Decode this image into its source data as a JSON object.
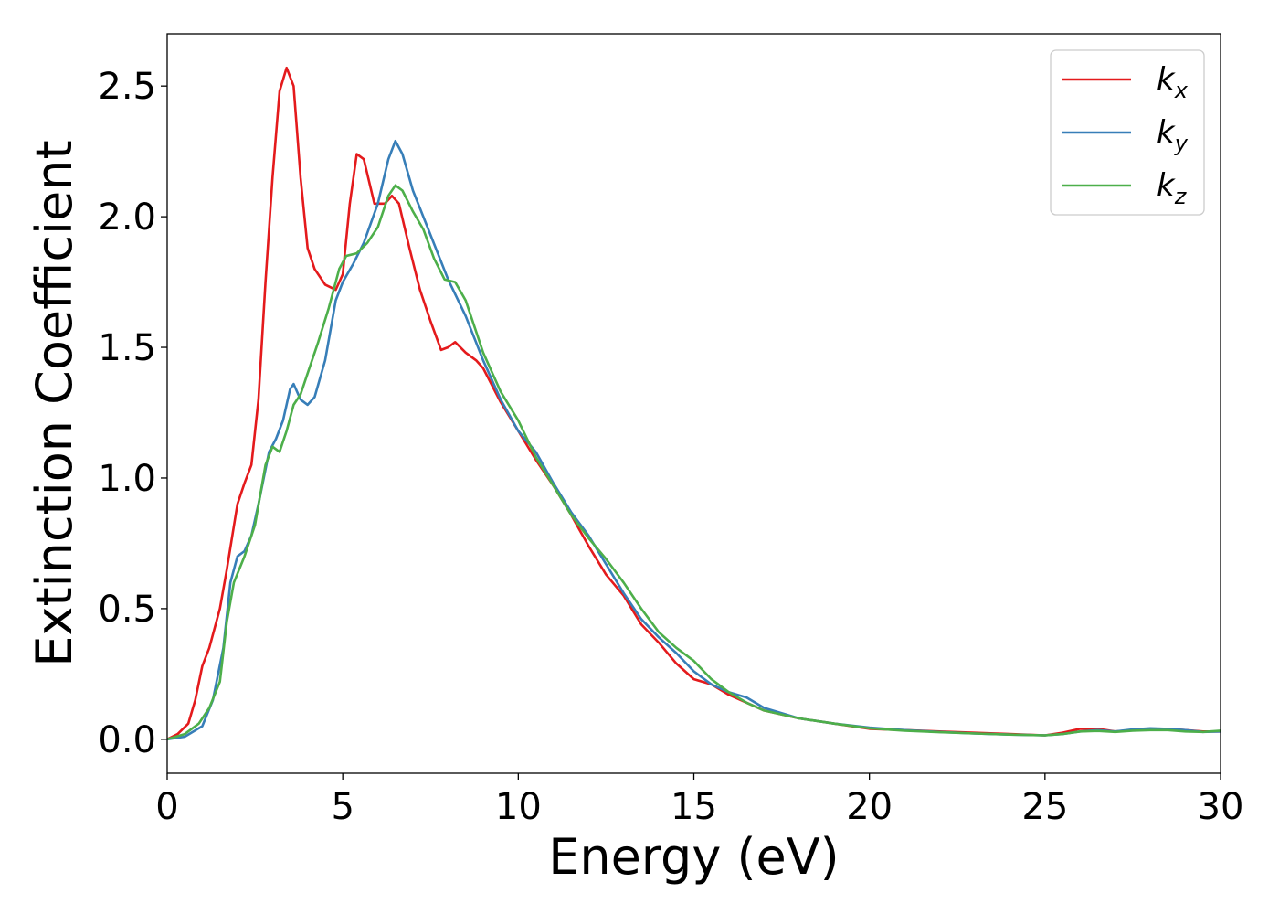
{
  "chart_data": {
    "type": "line",
    "xlabel": "Energy (eV)",
    "ylabel": "Extinction Coefficient",
    "xlim": [
      0,
      30
    ],
    "ylim": [
      -0.13,
      2.7
    ],
    "xticks": [
      0,
      5,
      10,
      15,
      20,
      25,
      30
    ],
    "xtick_labels": [
      "0",
      "5",
      "10",
      "15",
      "20",
      "25",
      "30"
    ],
    "yticks": [
      0.0,
      0.5,
      1.0,
      1.5,
      2.0,
      2.5
    ],
    "ytick_labels": [
      "0.0",
      "0.5",
      "1.0",
      "1.5",
      "2.0",
      "2.5"
    ],
    "grid": false,
    "legend_position": "top-right",
    "series": [
      {
        "name": "k_x",
        "label_main": "k",
        "label_sub": "x",
        "color": "#e41a1c",
        "points": [
          [
            0,
            0.0
          ],
          [
            0.3,
            0.02
          ],
          [
            0.6,
            0.06
          ],
          [
            0.8,
            0.15
          ],
          [
            1.0,
            0.28
          ],
          [
            1.2,
            0.35
          ],
          [
            1.5,
            0.5
          ],
          [
            1.7,
            0.65
          ],
          [
            2.0,
            0.9
          ],
          [
            2.2,
            0.98
          ],
          [
            2.4,
            1.05
          ],
          [
            2.6,
            1.3
          ],
          [
            2.8,
            1.75
          ],
          [
            3.0,
            2.15
          ],
          [
            3.2,
            2.48
          ],
          [
            3.4,
            2.57
          ],
          [
            3.6,
            2.5
          ],
          [
            3.8,
            2.15
          ],
          [
            4.0,
            1.88
          ],
          [
            4.2,
            1.8
          ],
          [
            4.5,
            1.74
          ],
          [
            4.8,
            1.72
          ],
          [
            5.0,
            1.78
          ],
          [
            5.2,
            2.05
          ],
          [
            5.4,
            2.24
          ],
          [
            5.6,
            2.22
          ],
          [
            5.9,
            2.05
          ],
          [
            6.2,
            2.05
          ],
          [
            6.4,
            2.08
          ],
          [
            6.6,
            2.05
          ],
          [
            6.9,
            1.88
          ],
          [
            7.2,
            1.72
          ],
          [
            7.5,
            1.6
          ],
          [
            7.8,
            1.49
          ],
          [
            8.0,
            1.5
          ],
          [
            8.2,
            1.52
          ],
          [
            8.5,
            1.48
          ],
          [
            8.8,
            1.45
          ],
          [
            9.0,
            1.42
          ],
          [
            9.5,
            1.29
          ],
          [
            10.0,
            1.18
          ],
          [
            10.5,
            1.07
          ],
          [
            11.0,
            0.97
          ],
          [
            11.5,
            0.86
          ],
          [
            12.0,
            0.74
          ],
          [
            12.5,
            0.63
          ],
          [
            13.0,
            0.55
          ],
          [
            13.5,
            0.44
          ],
          [
            14.0,
            0.37
          ],
          [
            14.5,
            0.29
          ],
          [
            15.0,
            0.23
          ],
          [
            15.5,
            0.21
          ],
          [
            16.0,
            0.17
          ],
          [
            16.5,
            0.14
          ],
          [
            17.0,
            0.11
          ],
          [
            18.0,
            0.08
          ],
          [
            19.0,
            0.06
          ],
          [
            20.0,
            0.04
          ],
          [
            21.0,
            0.035
          ],
          [
            22.0,
            0.03
          ],
          [
            23.0,
            0.025
          ],
          [
            24.0,
            0.02
          ],
          [
            25.0,
            0.015
          ],
          [
            25.5,
            0.025
          ],
          [
            26.0,
            0.04
          ],
          [
            26.5,
            0.04
          ],
          [
            27.0,
            0.03
          ],
          [
            27.5,
            0.035
          ],
          [
            28.0,
            0.04
          ],
          [
            28.5,
            0.04
          ],
          [
            29.0,
            0.035
          ],
          [
            29.5,
            0.03
          ],
          [
            30.0,
            0.03
          ]
        ]
      },
      {
        "name": "k_y",
        "label_main": "k",
        "label_sub": "y",
        "color": "#377eb8",
        "points": [
          [
            0,
            0.0
          ],
          [
            0.5,
            0.01
          ],
          [
            1.0,
            0.05
          ],
          [
            1.3,
            0.15
          ],
          [
            1.6,
            0.35
          ],
          [
            1.8,
            0.6
          ],
          [
            2.0,
            0.7
          ],
          [
            2.2,
            0.72
          ],
          [
            2.4,
            0.78
          ],
          [
            2.6,
            0.9
          ],
          [
            2.9,
            1.1
          ],
          [
            3.1,
            1.15
          ],
          [
            3.3,
            1.22
          ],
          [
            3.5,
            1.34
          ],
          [
            3.6,
            1.36
          ],
          [
            3.8,
            1.3
          ],
          [
            4.0,
            1.28
          ],
          [
            4.2,
            1.31
          ],
          [
            4.5,
            1.45
          ],
          [
            4.8,
            1.68
          ],
          [
            5.0,
            1.75
          ],
          [
            5.3,
            1.82
          ],
          [
            5.6,
            1.9
          ],
          [
            6.0,
            2.05
          ],
          [
            6.3,
            2.22
          ],
          [
            6.5,
            2.29
          ],
          [
            6.7,
            2.24
          ],
          [
            7.0,
            2.1
          ],
          [
            7.5,
            1.93
          ],
          [
            8.0,
            1.76
          ],
          [
            8.5,
            1.62
          ],
          [
            9.0,
            1.45
          ],
          [
            9.5,
            1.3
          ],
          [
            10.0,
            1.18
          ],
          [
            10.5,
            1.1
          ],
          [
            11.0,
            0.98
          ],
          [
            11.5,
            0.87
          ],
          [
            12.0,
            0.78
          ],
          [
            12.5,
            0.67
          ],
          [
            13.0,
            0.56
          ],
          [
            13.5,
            0.46
          ],
          [
            14.0,
            0.39
          ],
          [
            14.5,
            0.33
          ],
          [
            15.0,
            0.26
          ],
          [
            15.5,
            0.21
          ],
          [
            16.0,
            0.18
          ],
          [
            16.5,
            0.16
          ],
          [
            17.0,
            0.12
          ],
          [
            18.0,
            0.08
          ],
          [
            19.0,
            0.06
          ],
          [
            20.0,
            0.045
          ],
          [
            21.0,
            0.035
          ],
          [
            22.0,
            0.028
          ],
          [
            23.0,
            0.022
          ],
          [
            24.0,
            0.018
          ],
          [
            25.0,
            0.015
          ],
          [
            25.5,
            0.02
          ],
          [
            26.0,
            0.03
          ],
          [
            26.5,
            0.035
          ],
          [
            27.0,
            0.03
          ],
          [
            27.5,
            0.038
          ],
          [
            28.0,
            0.042
          ],
          [
            28.5,
            0.04
          ],
          [
            29.0,
            0.035
          ],
          [
            29.5,
            0.028
          ],
          [
            30.0,
            0.03
          ]
        ]
      },
      {
        "name": "k_z",
        "label_main": "k",
        "label_sub": "z",
        "color": "#4daf4a",
        "points": [
          [
            0,
            0.0
          ],
          [
            0.5,
            0.02
          ],
          [
            0.9,
            0.06
          ],
          [
            1.2,
            0.12
          ],
          [
            1.5,
            0.22
          ],
          [
            1.7,
            0.45
          ],
          [
            1.9,
            0.6
          ],
          [
            2.2,
            0.7
          ],
          [
            2.5,
            0.82
          ],
          [
            2.8,
            1.05
          ],
          [
            3.0,
            1.12
          ],
          [
            3.2,
            1.1
          ],
          [
            3.4,
            1.18
          ],
          [
            3.6,
            1.28
          ],
          [
            3.8,
            1.32
          ],
          [
            4.0,
            1.4
          ],
          [
            4.3,
            1.52
          ],
          [
            4.6,
            1.65
          ],
          [
            4.9,
            1.8
          ],
          [
            5.1,
            1.85
          ],
          [
            5.4,
            1.86
          ],
          [
            5.7,
            1.9
          ],
          [
            6.0,
            1.96
          ],
          [
            6.3,
            2.08
          ],
          [
            6.5,
            2.12
          ],
          [
            6.7,
            2.1
          ],
          [
            7.0,
            2.02
          ],
          [
            7.3,
            1.95
          ],
          [
            7.6,
            1.84
          ],
          [
            7.9,
            1.76
          ],
          [
            8.2,
            1.75
          ],
          [
            8.5,
            1.68
          ],
          [
            9.0,
            1.48
          ],
          [
            9.5,
            1.33
          ],
          [
            10.0,
            1.22
          ],
          [
            10.5,
            1.08
          ],
          [
            11.0,
            0.97
          ],
          [
            11.5,
            0.86
          ],
          [
            12.0,
            0.77
          ],
          [
            12.5,
            0.69
          ],
          [
            13.0,
            0.6
          ],
          [
            13.5,
            0.5
          ],
          [
            14.0,
            0.41
          ],
          [
            14.5,
            0.35
          ],
          [
            15.0,
            0.3
          ],
          [
            15.5,
            0.23
          ],
          [
            16.0,
            0.18
          ],
          [
            16.5,
            0.14
          ],
          [
            17.0,
            0.11
          ],
          [
            18.0,
            0.08
          ],
          [
            19.0,
            0.06
          ],
          [
            20.0,
            0.042
          ],
          [
            21.0,
            0.033
          ],
          [
            22.0,
            0.027
          ],
          [
            23.0,
            0.022
          ],
          [
            24.0,
            0.018
          ],
          [
            25.0,
            0.015
          ],
          [
            25.5,
            0.02
          ],
          [
            26.0,
            0.03
          ],
          [
            26.5,
            0.032
          ],
          [
            27.0,
            0.028
          ],
          [
            27.5,
            0.033
          ],
          [
            28.0,
            0.035
          ],
          [
            28.5,
            0.035
          ],
          [
            29.0,
            0.03
          ],
          [
            29.5,
            0.028
          ],
          [
            30.0,
            0.033
          ]
        ]
      }
    ]
  }
}
